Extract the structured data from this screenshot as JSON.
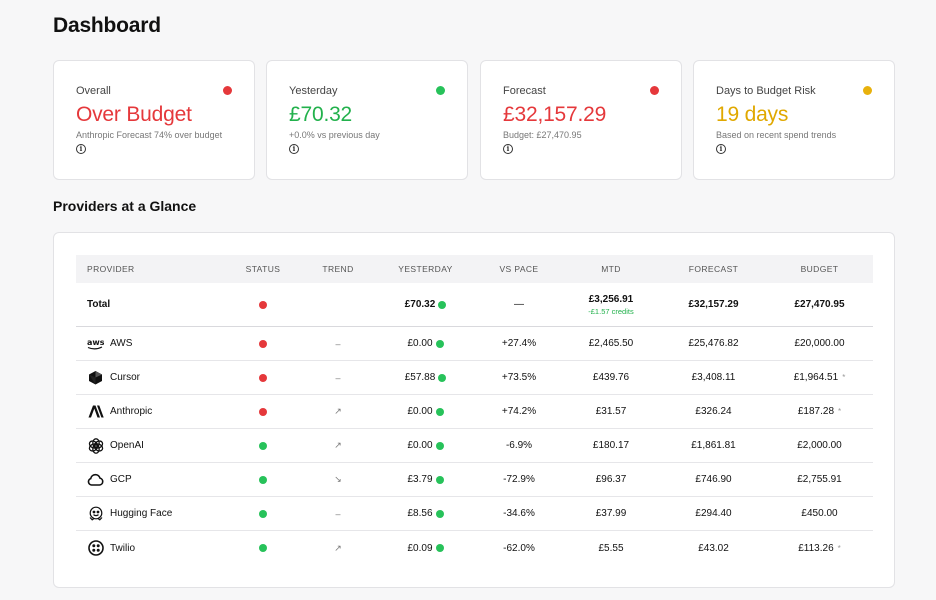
{
  "page": {
    "title": "Dashboard"
  },
  "cards": [
    {
      "label": "Overall",
      "value": "Over Budget",
      "sub": "Anthropic Forecast 74% over budget",
      "status": "red"
    },
    {
      "label": "Yesterday",
      "value": "£70.32",
      "sub": "+0.0% vs previous day",
      "status": "green"
    },
    {
      "label": "Forecast",
      "value": "£32,157.29",
      "sub": "Budget: £27,470.95",
      "status": "red"
    },
    {
      "label": "Days to Budget Risk",
      "value": "19 days",
      "sub": "Based on recent spend trends",
      "status": "amber"
    }
  ],
  "colors": {
    "red": "#e5383b",
    "green": "#22b14c",
    "amber": "#e0a800"
  },
  "section": {
    "title": "Providers at a Glance"
  },
  "table": {
    "headers": [
      "PROVIDER",
      "STATUS",
      "TREND",
      "YESTERDAY",
      "VS PACE",
      "MTD",
      "FORECAST",
      "BUDGET"
    ],
    "total": {
      "name": "Total",
      "status": "red",
      "yesterday": "£70.32",
      "pace": "—",
      "mtd": "£3,256.91",
      "mtd_sub": "-£1.57 credits",
      "forecast": "£32,157.29",
      "budget": "£27,470.95"
    },
    "rows": [
      {
        "name": "AWS",
        "icon": "aws-icon",
        "status": "red",
        "trend": "–",
        "yesterday": "£0.00",
        "pace": "+27.4%",
        "pace_color": "red",
        "mtd": "£2,465.50",
        "forecast": "£25,476.82",
        "budget": "£20,000.00",
        "star": ""
      },
      {
        "name": "Cursor",
        "icon": "cursor-icon",
        "status": "red",
        "trend": "–",
        "yesterday": "£57.88",
        "pace": "+73.5%",
        "pace_color": "red",
        "mtd": "£439.76",
        "forecast": "£3,408.11",
        "budget": "£1,964.51",
        "star": "*"
      },
      {
        "name": "Anthropic",
        "icon": "anthropic-icon",
        "status": "red",
        "trend": "↗",
        "yesterday": "£0.00",
        "pace": "+74.2%",
        "pace_color": "red",
        "mtd": "£31.57",
        "forecast": "£326.24",
        "budget": "£187.28",
        "star": "*"
      },
      {
        "name": "OpenAI",
        "icon": "openai-icon",
        "status": "green",
        "trend": "↗",
        "yesterday": "£0.00",
        "pace": "-6.9%",
        "pace_color": "green",
        "mtd": "£180.17",
        "forecast": "£1,861.81",
        "budget": "£2,000.00",
        "star": ""
      },
      {
        "name": "GCP",
        "icon": "cloud-icon",
        "status": "green",
        "trend": "↘",
        "yesterday": "£3.79",
        "pace": "-72.9%",
        "pace_color": "green",
        "mtd": "£96.37",
        "forecast": "£746.90",
        "budget": "£2,755.91",
        "star": ""
      },
      {
        "name": "Hugging Face",
        "icon": "hugging-face-icon",
        "status": "green",
        "trend": "–",
        "yesterday": "£8.56",
        "pace": "-34.6%",
        "pace_color": "green",
        "mtd": "£37.99",
        "forecast": "£294.40",
        "budget": "£450.00",
        "star": ""
      },
      {
        "name": "Twilio",
        "icon": "twilio-icon",
        "status": "green",
        "trend": "↗",
        "yesterday": "£0.09",
        "pace": "-62.0%",
        "pace_color": "green",
        "mtd": "£5.55",
        "forecast": "£43.02",
        "budget": "£113.26",
        "star": "*"
      }
    ]
  }
}
